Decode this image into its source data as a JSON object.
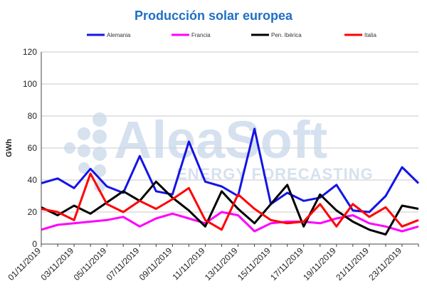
{
  "chart_data": {
    "type": "line",
    "title": "Producción solar europea",
    "xlabel": "",
    "ylabel": "GWh",
    "ylim": [
      0,
      120
    ],
    "yticks": [
      0,
      20,
      40,
      60,
      80,
      100,
      120
    ],
    "grid": true,
    "legend_position": "top",
    "x": [
      "01/11/2019",
      "02/11/2019",
      "03/11/2019",
      "04/11/2019",
      "05/11/2019",
      "06/11/2019",
      "07/11/2019",
      "08/11/2019",
      "09/11/2019",
      "10/11/2019",
      "11/11/2019",
      "12/11/2019",
      "13/11/2019",
      "14/11/2019",
      "15/11/2019",
      "16/11/2019",
      "17/11/2019",
      "18/11/2019",
      "19/11/2019",
      "20/11/2019",
      "21/11/2019",
      "22/11/2019",
      "23/11/2019",
      "24/11/2019"
    ],
    "x_tick_labels": [
      "01/11/2019",
      "03/11/2019",
      "05/11/2019",
      "07/11/2019",
      "09/11/2019",
      "11/11/2019",
      "13/11/2019",
      "15/11/2019",
      "17/11/2019",
      "19/11/2019",
      "21/11/2019",
      "23/11/2019"
    ],
    "series": [
      {
        "name": "Alemania",
        "color": "#1414e6",
        "values": [
          38,
          41,
          35,
          47,
          36,
          32,
          55,
          33,
          31,
          64,
          39,
          36,
          30,
          72,
          25,
          32,
          27,
          29,
          37,
          21,
          20,
          30,
          48,
          38
        ]
      },
      {
        "name": "Francia",
        "color": "#ff00ff",
        "values": [
          9,
          12,
          13,
          14,
          15,
          17,
          11,
          16,
          19,
          16,
          13,
          20,
          18,
          8,
          13,
          14,
          14,
          13,
          16,
          18,
          13,
          11,
          8,
          11
        ]
      },
      {
        "name": "Pen. Ibérica",
        "color": "#000000",
        "values": [
          23,
          18,
          24,
          19,
          26,
          33,
          27,
          39,
          29,
          21,
          11,
          33,
          22,
          13,
          25,
          37,
          11,
          31,
          21,
          14,
          9,
          6,
          24,
          22
        ]
      },
      {
        "name": "Italia",
        "color": "#ff0000",
        "values": [
          22,
          20,
          15,
          44,
          25,
          20,
          27,
          22,
          28,
          35,
          15,
          9,
          31,
          22,
          15,
          13,
          14,
          25,
          11,
          25,
          17,
          23,
          11,
          15
        ]
      }
    ]
  },
  "watermark": {
    "brand": "AleaSoft",
    "tagline": "ENERGY FORECASTING",
    "color": "#c9d8ea"
  }
}
